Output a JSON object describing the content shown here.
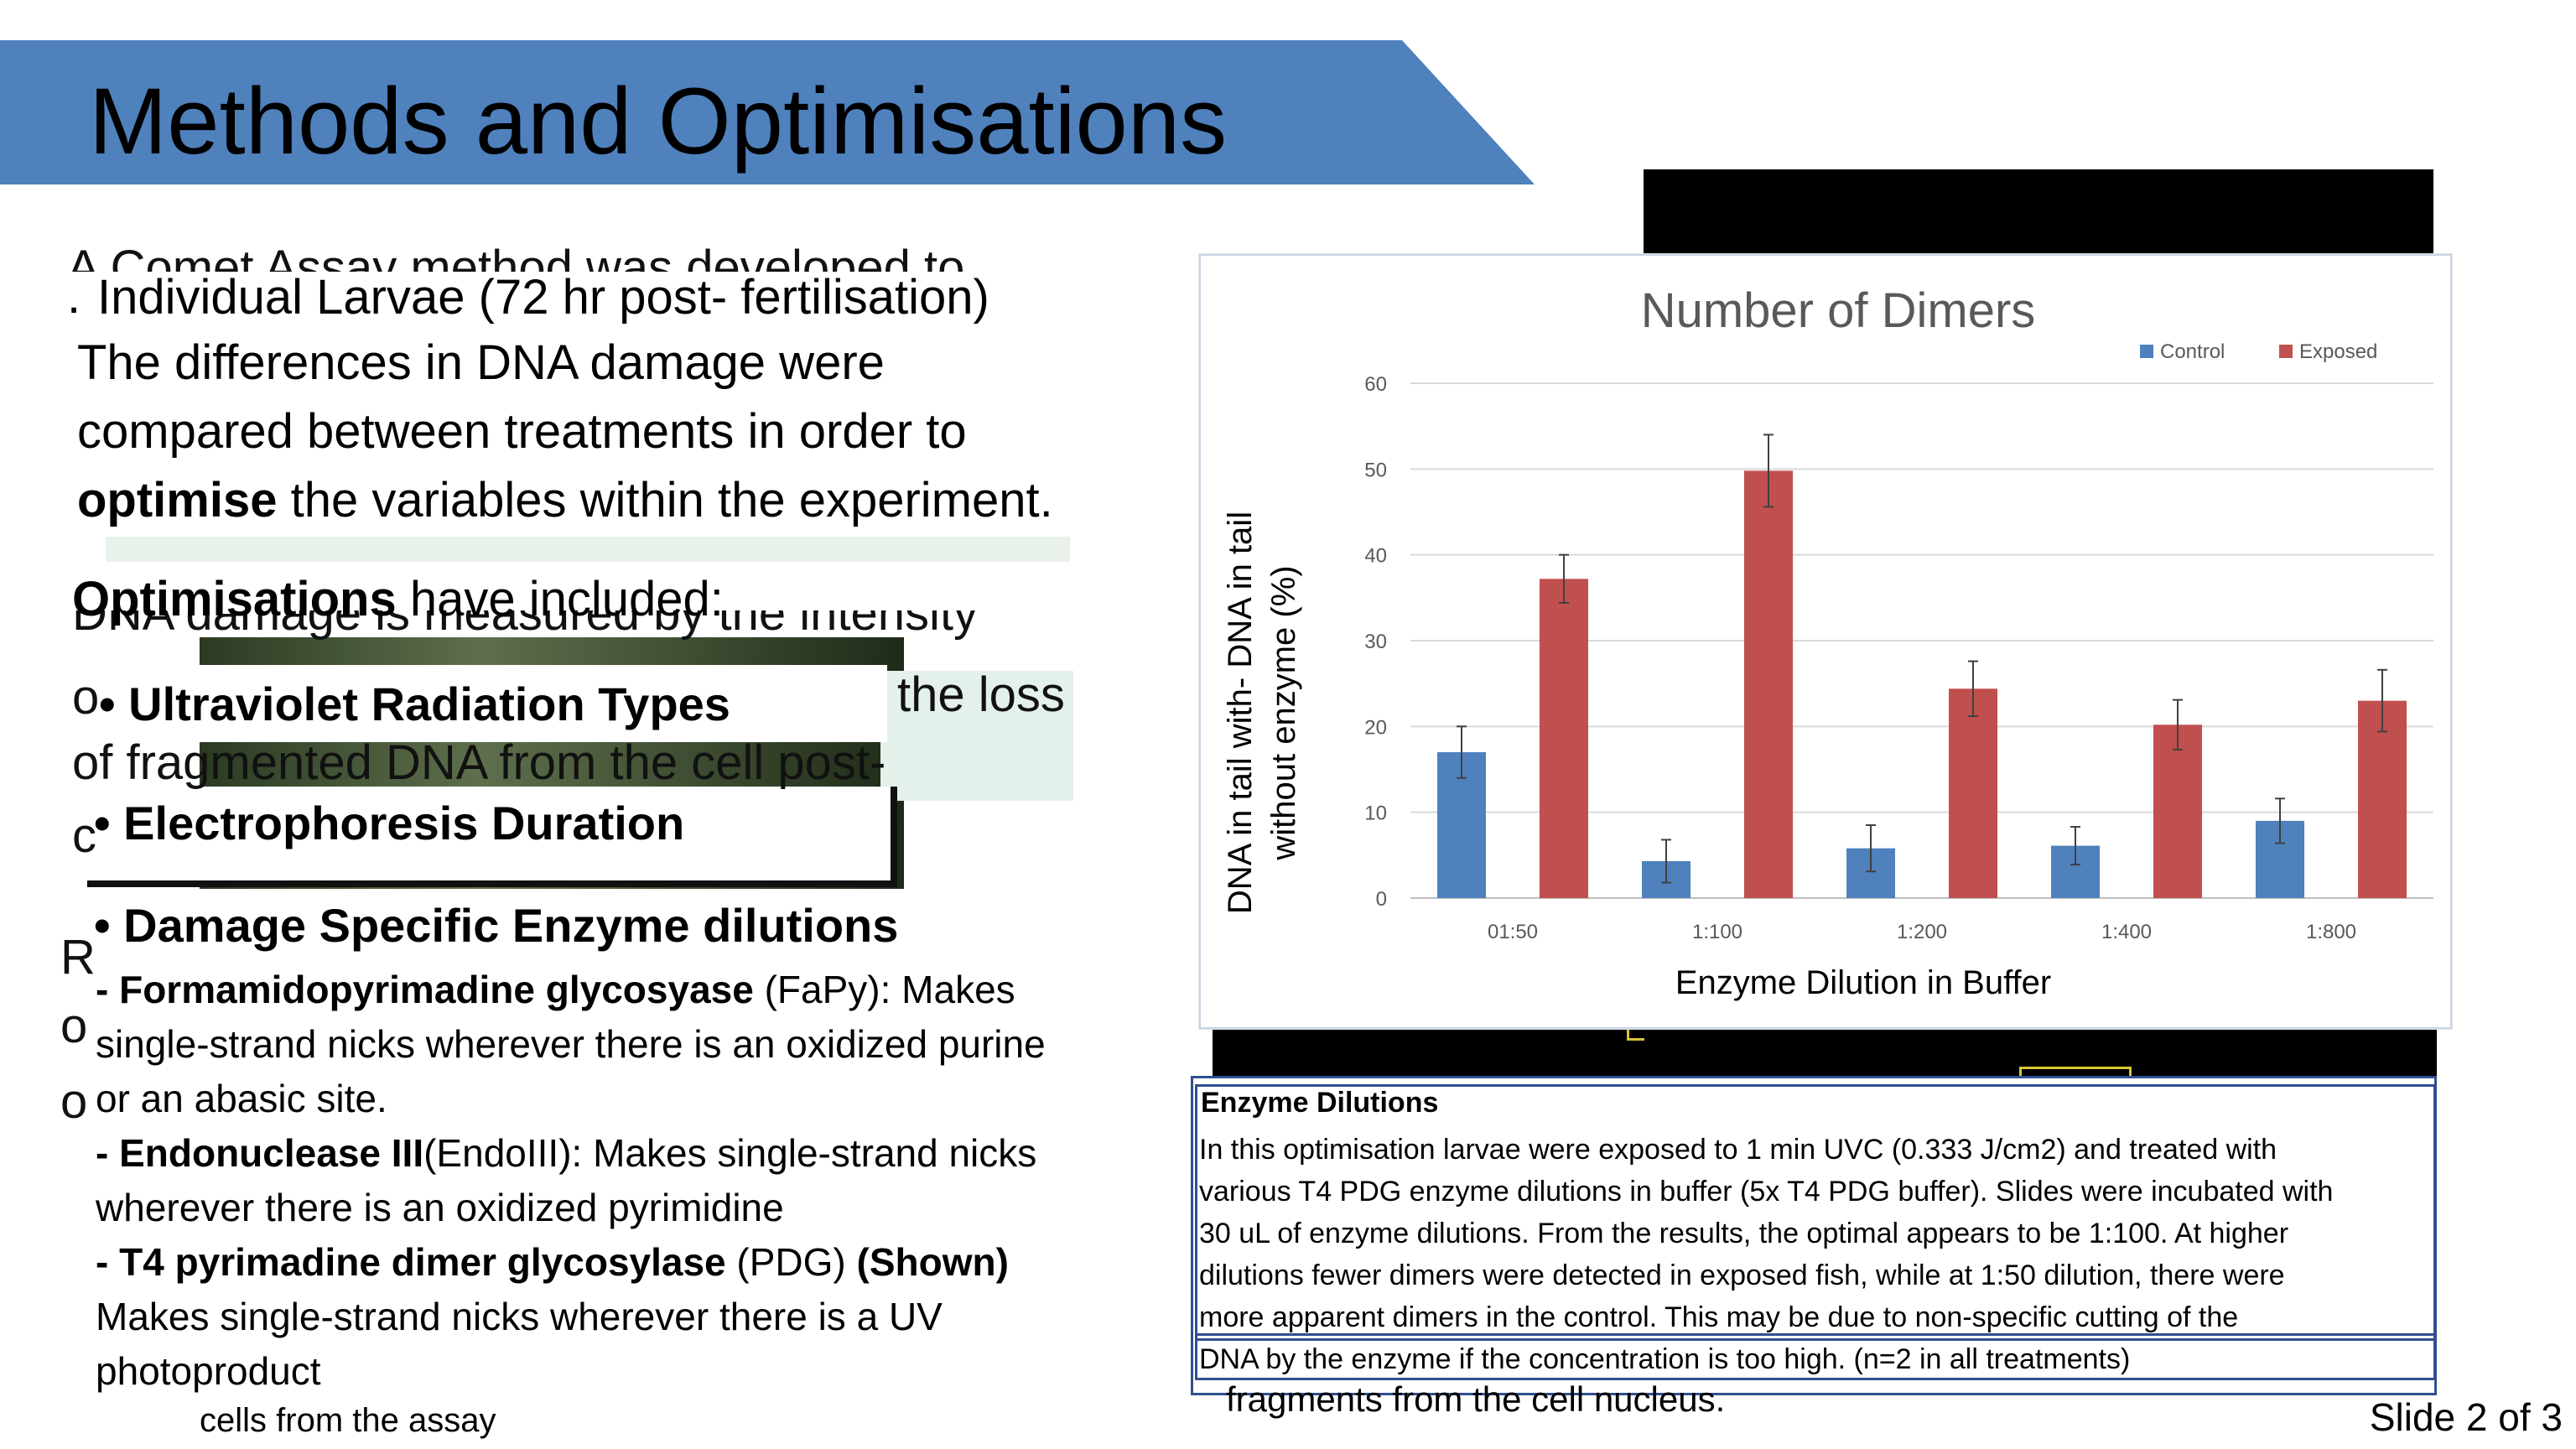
{
  "slide": {
    "title": "Methods and Optimisations",
    "slide_number": "Slide 2 of 3"
  },
  "background_text": {
    "line1": "A Comet  Assay method was developed to",
    "line2": "DNA damage is measured by the intensity",
    "line3a": "o",
    "line3b": "the loss",
    "line4": "of fragmented DNA from the cell post-",
    "line5": "c",
    "letters": [
      "R",
      "o",
      "o"
    ],
    "caption_cells": "cells from the assay",
    "caption_fragments": "fragments from the cell nucleus."
  },
  "intro": {
    "prefix": ".",
    "line1": "Individual Larvae (72 hr post- fertilisation)",
    "line2": "The differences in DNA damage were",
    "line3": "compared between treatments in order to",
    "line4_bold": "optimise",
    "line4_rest": " the variables within the experiment."
  },
  "optimisations": {
    "heading_bold": "Optimisations",
    "heading_rest": " have included:",
    "bullets": [
      "• Ultraviolet Radiation Types",
      "• Electrophoresis Duration",
      "• Damage Specific Enzyme dilutions"
    ]
  },
  "enzymes": [
    {
      "lead": "- ",
      "name": "Formamidopyrimadine glycosyase",
      "abbr": " (FaPy): Makes",
      "cont": [
        "single-strand nicks wherever there is an oxidized purine",
        "or an abasic site."
      ]
    },
    {
      "lead": "- ",
      "name": "Endonuclease III",
      "abbr": "(EndoIII): Makes single-strand nicks",
      "cont": [
        "wherever there is an oxidized pyrimidine"
      ]
    },
    {
      "lead": "- ",
      "name": "T4 pyrimadine dimer glycosylase",
      "abbr": " (PDG) ",
      "shown": "(Shown)",
      "cont": [
        "Makes single-strand nicks wherever there is a UV",
        "photoproduct"
      ]
    }
  ],
  "notes": {
    "heading": "Enzyme Dilutions",
    "lines": [
      "In this optimisation larvae were exposed to 1 min UVC (0.333 J/cm2) and treated with",
      "various T4 PDG enzyme dilutions in buffer (5x T4 PDG buffer). Slides were incubated with",
      "30 uL of enzyme dilutions. From the results, the optimal appears to be 1:100. At higher",
      "dilutions fewer dimers were detected in exposed fish, while at 1:50 dilution, there were",
      "more apparent dimers in the control. This may be due to non-specific cutting of the",
      "DNA by the enzyme if the concentration is too high. (n=2 in all treatments)"
    ]
  },
  "chart_data": {
    "type": "bar",
    "title": "Number of Dimers",
    "xlabel": "Enzyme Dilution in Buffer",
    "ylabel_line1": "DNA in tail with-  DNA in tail",
    "ylabel_line2": "without enzyme (%)",
    "categories": [
      "01:50",
      "1:100",
      "1:200",
      "1:400",
      "1:800"
    ],
    "ylim": [
      0,
      60
    ],
    "yticks": [
      0,
      10,
      20,
      30,
      40,
      50,
      60
    ],
    "grid": true,
    "legend_position": "top-right",
    "series": [
      {
        "name": "Control",
        "color": "#4f81bd",
        "values": [
          17,
          4.3,
          5.8,
          6.1,
          9
        ],
        "errors": [
          3,
          2.5,
          2.7,
          2.2,
          2.6
        ]
      },
      {
        "name": "Exposed",
        "color": "#c0504d",
        "values": [
          37.2,
          49.8,
          24.4,
          20.2,
          23
        ],
        "errors": [
          2.8,
          4.2,
          3.2,
          2.9,
          3.6
        ]
      }
    ]
  }
}
